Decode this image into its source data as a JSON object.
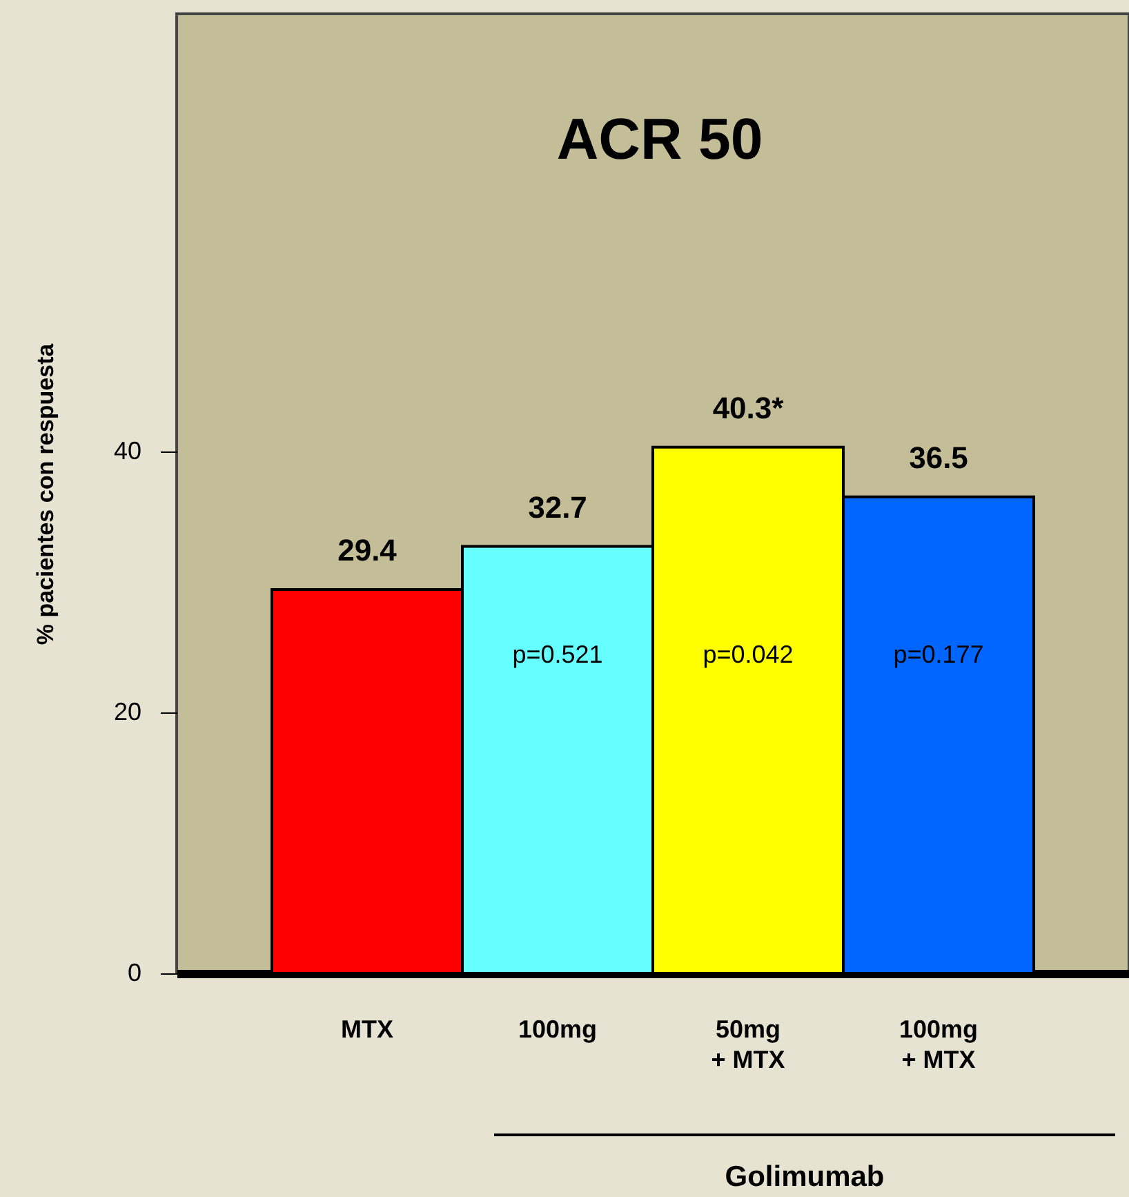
{
  "chart_data": {
    "type": "bar",
    "title": "ACR 50",
    "ylabel": "% pacientes con respuesta",
    "categories": [
      "MTX",
      "100mg",
      "50mg\n+ MTX",
      "100mg\n+ MTX"
    ],
    "values": [
      29.4,
      32.7,
      40.3,
      36.5
    ],
    "colors": [
      "#ff0000",
      "#66ffff",
      "#ffff00",
      "#0066ff"
    ],
    "value_labels": [
      "29.4",
      "32.7",
      "40.3*",
      "36.5"
    ],
    "ylim": [
      0,
      73.5
    ],
    "yticks": [
      0,
      20,
      40
    ],
    "grid": false,
    "annotations": [
      "p=0.521",
      "p=0.042",
      "p=0.177",
      "Golimumab"
    ]
  }
}
